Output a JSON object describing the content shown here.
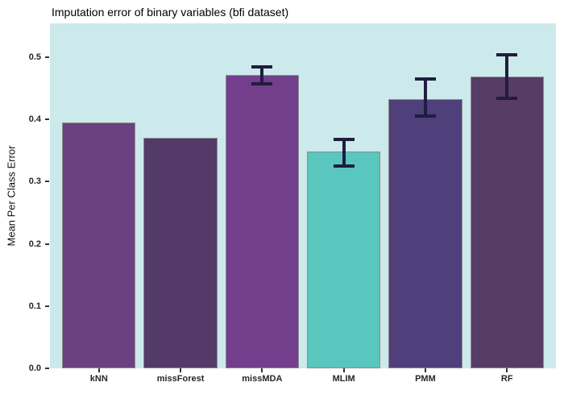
{
  "chart_data": {
    "type": "bar",
    "title": "Imputation error of binary variables (bfi dataset)",
    "xlabel": "",
    "ylabel": "Mean Per Class Error",
    "categories": [
      "kNN",
      "missForest",
      "missMDA",
      "MLIM",
      "PMM",
      "RF"
    ],
    "values": [
      0.395,
      0.37,
      0.471,
      0.348,
      0.432,
      0.468
    ],
    "bar_colors": [
      "#6b4181",
      "#533a69",
      "#733e8c",
      "#59c7bd",
      "#4f3f7a",
      "#573c66"
    ],
    "errors": [
      null,
      null,
      {
        "low": 0.457,
        "high": 0.484
      },
      {
        "low": 0.325,
        "high": 0.367
      },
      {
        "low": 0.405,
        "high": 0.465
      },
      {
        "low": 0.433,
        "high": 0.503
      }
    ],
    "y_ticks": [
      "0.0",
      "0.1",
      "0.2",
      "0.3",
      "0.4",
      "0.5"
    ],
    "ylim": [
      0,
      0.5
    ],
    "axis_value_max": 0.554,
    "grid": "off",
    "legend": "none",
    "panel_bg": "#cce9eb",
    "bar_border_color": "#8c8c8c",
    "errorbar_color": "#211d3f",
    "axis_text_color": "#262626"
  }
}
